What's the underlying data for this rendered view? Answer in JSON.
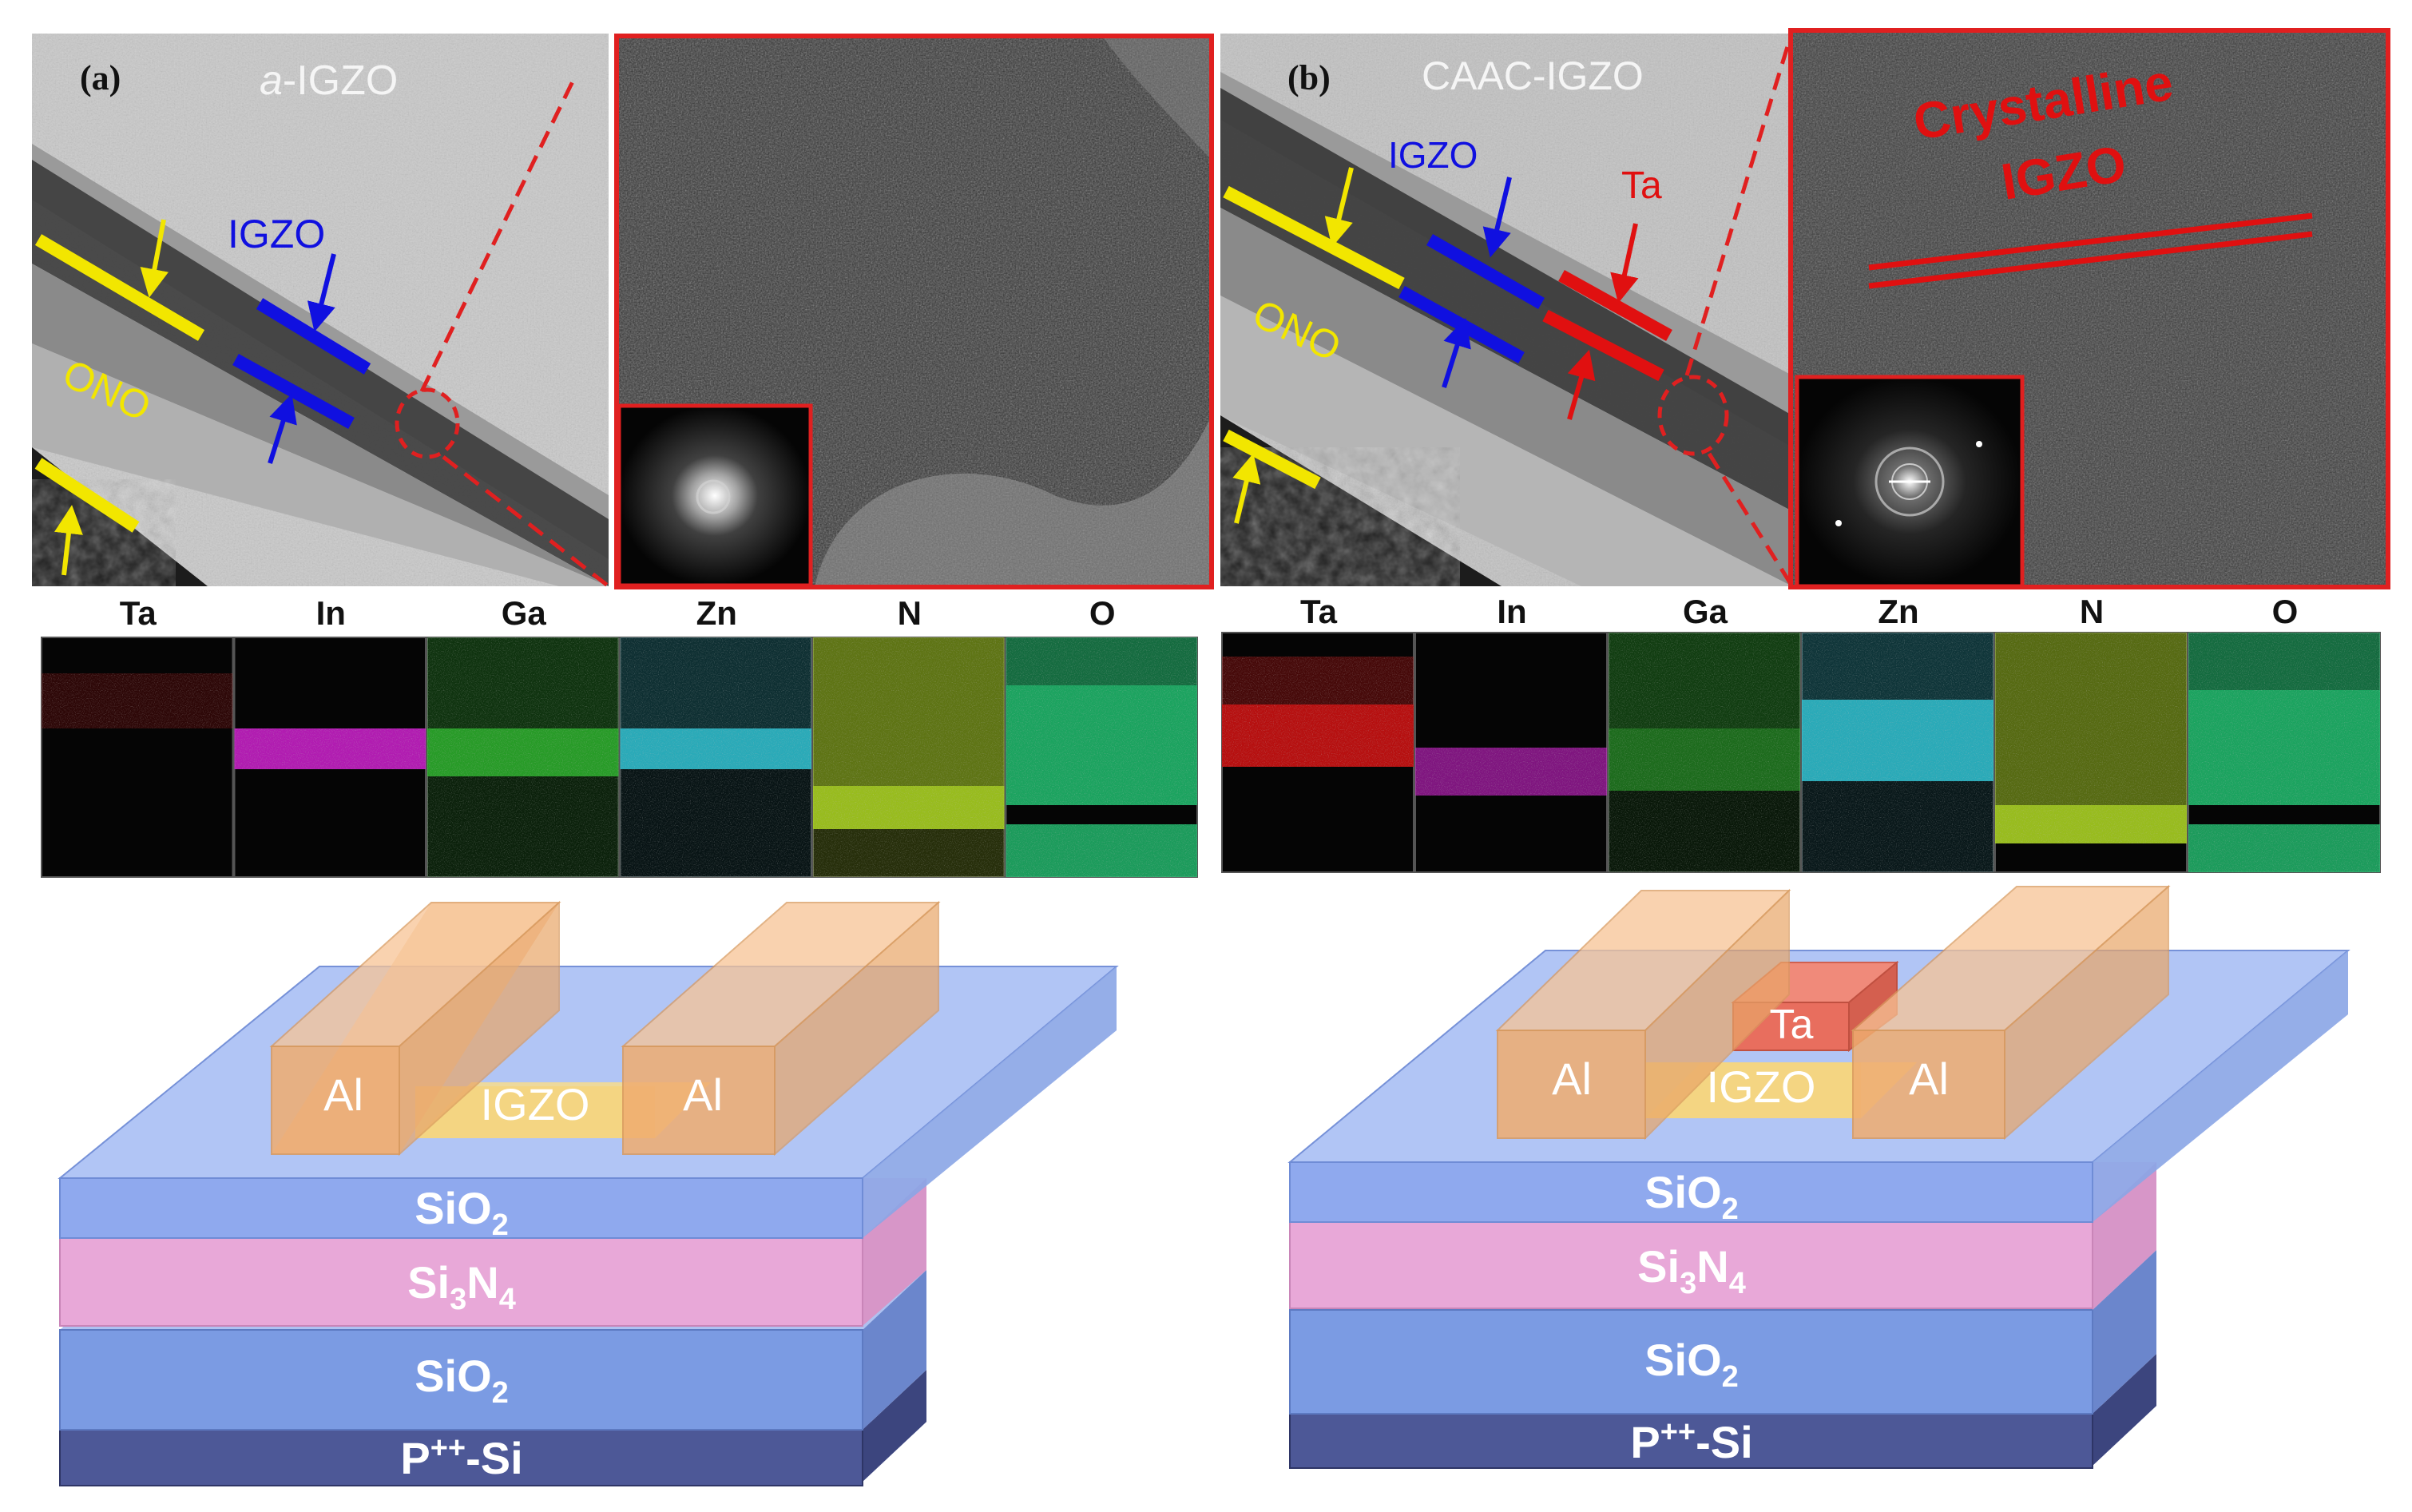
{
  "panels": {
    "a": {
      "label": "(a)",
      "title_italic": "a",
      "title_rest": "-IGZO",
      "tem": {
        "igzo": "IGZO",
        "ono": "ONO"
      },
      "eds_elements": [
        "Ta",
        "In",
        "Ga",
        "Zn",
        "N",
        "O"
      ],
      "device": {
        "contact_left": "Al",
        "channel": "IGZO",
        "contact_right": "Al",
        "layers": [
          {
            "base": "SiO",
            "sub": "2"
          },
          {
            "base": "Si",
            "sub": "3",
            "base2": "N",
            "sub2": "4"
          },
          {
            "base": "SiO",
            "sub": "2"
          },
          {
            "base": "P",
            "sup": "++",
            "tail": "-Si"
          }
        ]
      }
    },
    "b": {
      "label": "(b)",
      "title": "CAAC-IGZO",
      "tem": {
        "igzo": "IGZO",
        "ta": "Ta",
        "ono": "ONO",
        "zoom_line1": "Crystalline",
        "zoom_line2": "IGZO"
      },
      "eds_elements": [
        "Ta",
        "In",
        "Ga",
        "Zn",
        "N",
        "O"
      ],
      "device": {
        "contact_left": "Al",
        "gate": "Ta",
        "channel": "IGZO",
        "contact_right": "Al",
        "layers": [
          {
            "base": "SiO",
            "sub": "2"
          },
          {
            "base": "Si",
            "sub": "3",
            "base2": "N",
            "sub2": "4"
          },
          {
            "base": "SiO",
            "sub": "2"
          },
          {
            "base": "P",
            "sup": "++",
            "tail": "-Si"
          }
        ]
      }
    }
  },
  "colors": {
    "igzo_marker": "#1010e0",
    "ono_marker": "#f2e600",
    "ta_marker": "#e01010",
    "zoom_frame": "#e02020",
    "eds_Ta": "#c01010",
    "eds_In": "#d020d0",
    "eds_Ga": "#30c030",
    "eds_Zn": "#30c8d8",
    "eds_N": "#a8d020",
    "eds_O": "#20c070",
    "layer_sio2": "#7f9ee6",
    "layer_si3n4": "#e7a5d6",
    "layer_psi": "#4a5596",
    "contact_al": "#f2b47a",
    "channel_igzo": "#f6d47a",
    "gate_ta": "#ea7868"
  }
}
